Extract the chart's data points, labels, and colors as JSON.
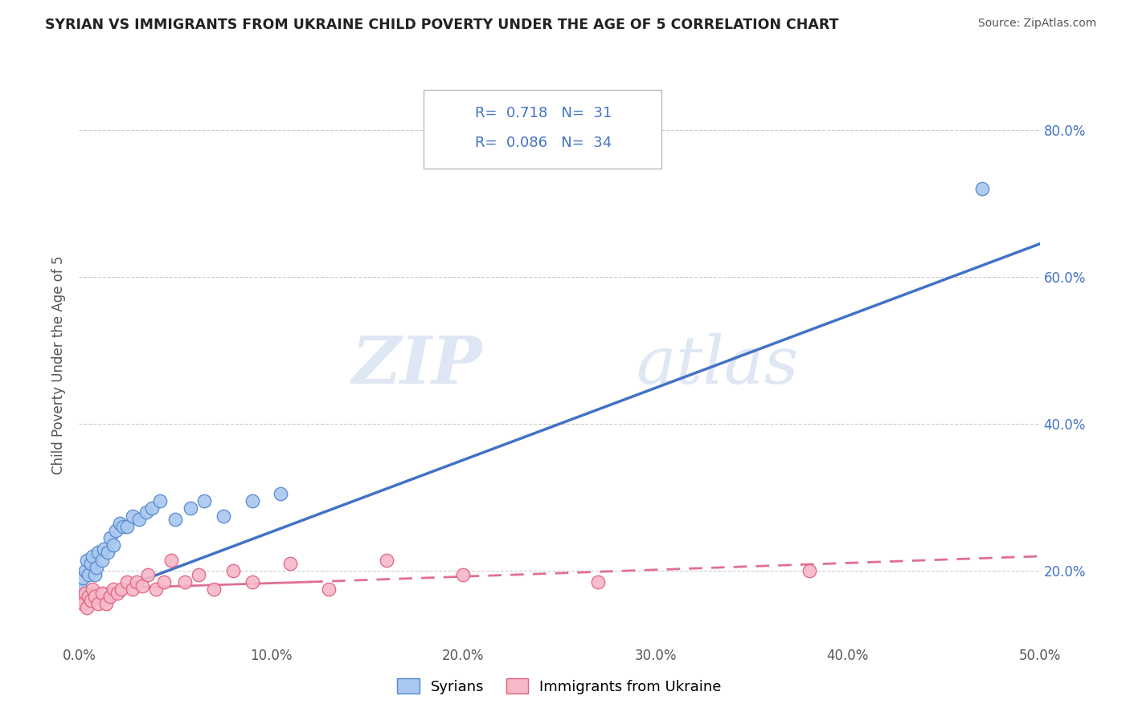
{
  "title": "SYRIAN VS IMMIGRANTS FROM UKRAINE CHILD POVERTY UNDER THE AGE OF 5 CORRELATION CHART",
  "source": "Source: ZipAtlas.com",
  "ylabel": "Child Poverty Under the Age of 5",
  "xlim": [
    0.0,
    0.5
  ],
  "ylim": [
    0.1,
    0.86
  ],
  "xticks": [
    0.0,
    0.1,
    0.2,
    0.3,
    0.4,
    0.5
  ],
  "yticks": [
    0.2,
    0.4,
    0.6,
    0.8
  ],
  "xticklabels": [
    "0.0%",
    "10.0%",
    "20.0%",
    "30.0%",
    "40.0%",
    "50.0%"
  ],
  "yticklabels": [
    "20.0%",
    "40.0%",
    "60.0%",
    "80.0%"
  ],
  "syrian_color": "#a8c8f0",
  "ukraine_color": "#f7b8c8",
  "syrian_edge_color": "#5588cc",
  "ukraine_edge_color": "#e06080",
  "syrian_line_color": "#4472c4",
  "ukraine_line_color": "#e07090",
  "ukraine_line_dash": [
    6,
    4
  ],
  "syrian_R": 0.718,
  "syrian_N": 31,
  "ukraine_R": 0.086,
  "ukraine_N": 34,
  "legend_label_1": "Syrians",
  "legend_label_2": "Immigrants from Ukraine",
  "watermark_zip": "ZIP",
  "watermark_atlas": "atlas",
  "background_color": "#ffffff",
  "grid_color": "#cccccc",
  "title_color": "#222222",
  "source_color": "#555555",
  "tick_color": "#4472c4",
  "ylabel_color": "#555555",
  "syrian_x": [
    0.001,
    0.002,
    0.003,
    0.004,
    0.005,
    0.006,
    0.007,
    0.008,
    0.009,
    0.01,
    0.012,
    0.013,
    0.015,
    0.016,
    0.018,
    0.019,
    0.021,
    0.023,
    0.025,
    0.028,
    0.031,
    0.035,
    0.038,
    0.042,
    0.05,
    0.058,
    0.065,
    0.075,
    0.09,
    0.105,
    0.47
  ],
  "syrian_y": [
    0.175,
    0.19,
    0.2,
    0.215,
    0.195,
    0.21,
    0.22,
    0.195,
    0.205,
    0.225,
    0.215,
    0.23,
    0.225,
    0.245,
    0.235,
    0.255,
    0.265,
    0.26,
    0.26,
    0.275,
    0.27,
    0.28,
    0.285,
    0.295,
    0.27,
    0.285,
    0.295,
    0.275,
    0.295,
    0.305,
    0.72
  ],
  "ukraine_x": [
    0.001,
    0.002,
    0.003,
    0.004,
    0.005,
    0.006,
    0.007,
    0.008,
    0.01,
    0.012,
    0.014,
    0.016,
    0.018,
    0.02,
    0.022,
    0.025,
    0.028,
    0.03,
    0.033,
    0.036,
    0.04,
    0.044,
    0.048,
    0.055,
    0.062,
    0.07,
    0.08,
    0.09,
    0.11,
    0.13,
    0.16,
    0.2,
    0.27,
    0.38
  ],
  "ukraine_y": [
    0.16,
    0.155,
    0.17,
    0.15,
    0.165,
    0.16,
    0.175,
    0.165,
    0.155,
    0.17,
    0.155,
    0.165,
    0.175,
    0.17,
    0.175,
    0.185,
    0.175,
    0.185,
    0.18,
    0.195,
    0.175,
    0.185,
    0.215,
    0.185,
    0.195,
    0.175,
    0.2,
    0.185,
    0.21,
    0.175,
    0.215,
    0.195,
    0.185,
    0.2
  ]
}
